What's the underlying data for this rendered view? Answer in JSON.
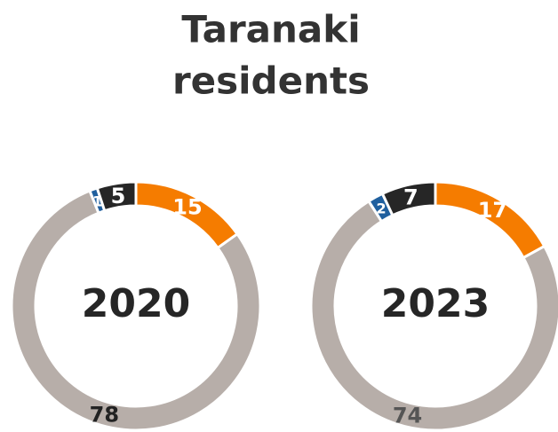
{
  "title_lines": [
    "Taranaki",
    "residents"
  ],
  "chart_data": [
    {
      "type": "pie",
      "title": "2020",
      "values": [
        15,
        78,
        1,
        5
      ],
      "colors": [
        "#f57c00",
        "#b7aea9",
        "#1f5f9e",
        "#262626"
      ],
      "label_colors": [
        "#ffffff",
        "#222222",
        "#ffffff",
        "#ffffff"
      ]
    },
    {
      "type": "pie",
      "title": "2023",
      "values": [
        17,
        74,
        2,
        7
      ],
      "colors": [
        "#f57c00",
        "#b7aea9",
        "#1f5f9e",
        "#262626"
      ],
      "label_colors": [
        "#ffffff",
        "#555555",
        "#ffffff",
        "#ffffff"
      ]
    }
  ]
}
